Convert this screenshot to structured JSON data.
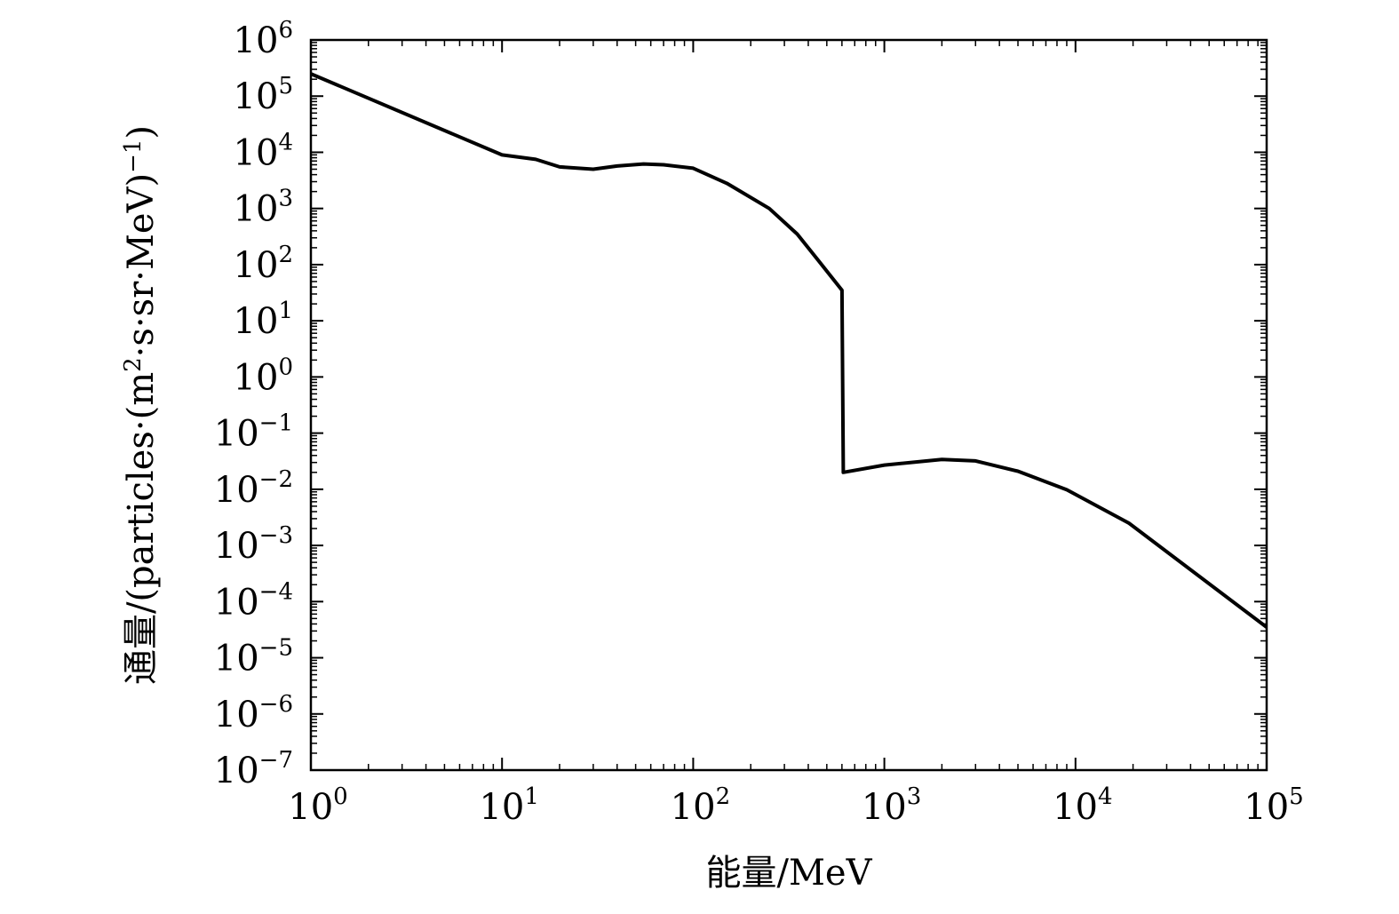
{
  "chart_data": {
    "type": "line",
    "xlabel": "能量/MeV",
    "ylabel": "通量/(particles·(m²·s·sr·MeV)⁻¹)",
    "ylabel_parts": {
      "prefix": "通量/(particles·(m",
      "sup1": "2",
      "middle": "·s·sr·MeV)",
      "sup2": "−1",
      "suffix": ")"
    },
    "x_scale": "log",
    "y_scale": "log",
    "xlim": [
      1,
      100000
    ],
    "ylim": [
      1e-07,
      1000000
    ],
    "x_ticks": [
      {
        "base": "10",
        "exp": "0"
      },
      {
        "base": "10",
        "exp": "1"
      },
      {
        "base": "10",
        "exp": "2"
      },
      {
        "base": "10",
        "exp": "3"
      },
      {
        "base": "10",
        "exp": "4"
      },
      {
        "base": "10",
        "exp": "5"
      }
    ],
    "y_ticks": [
      {
        "base": "10",
        "exp": "6"
      },
      {
        "base": "10",
        "exp": "5"
      },
      {
        "base": "10",
        "exp": "4"
      },
      {
        "base": "10",
        "exp": "3"
      },
      {
        "base": "10",
        "exp": "2"
      },
      {
        "base": "10",
        "exp": "1"
      },
      {
        "base": "10",
        "exp": "0"
      },
      {
        "base": "10",
        "exp": "−1"
      },
      {
        "base": "10",
        "exp": "−2"
      },
      {
        "base": "10",
        "exp": "−3"
      },
      {
        "base": "10",
        "exp": "−4"
      },
      {
        "base": "10",
        "exp": "−5"
      },
      {
        "base": "10",
        "exp": "−6"
      },
      {
        "base": "10",
        "exp": "−7"
      }
    ],
    "grid": false,
    "series": [
      {
        "color": "#000000",
        "points": [
          [
            1,
            250000
          ],
          [
            10,
            9000
          ],
          [
            15,
            7500
          ],
          [
            20,
            5500
          ],
          [
            30,
            5000
          ],
          [
            40,
            5700
          ],
          [
            55,
            6200
          ],
          [
            70,
            6000
          ],
          [
            100,
            5200
          ],
          [
            150,
            2800
          ],
          [
            250,
            1000
          ],
          [
            350,
            350
          ],
          [
            450,
            120
          ],
          [
            600,
            35
          ],
          [
            610,
            0.02
          ],
          [
            1000,
            0.027
          ],
          [
            2000,
            0.034
          ],
          [
            3000,
            0.032
          ],
          [
            5000,
            0.021
          ],
          [
            9000,
            0.0098
          ],
          [
            19000,
            0.0025
          ],
          [
            100000,
            3.5e-05
          ]
        ]
      }
    ]
  }
}
